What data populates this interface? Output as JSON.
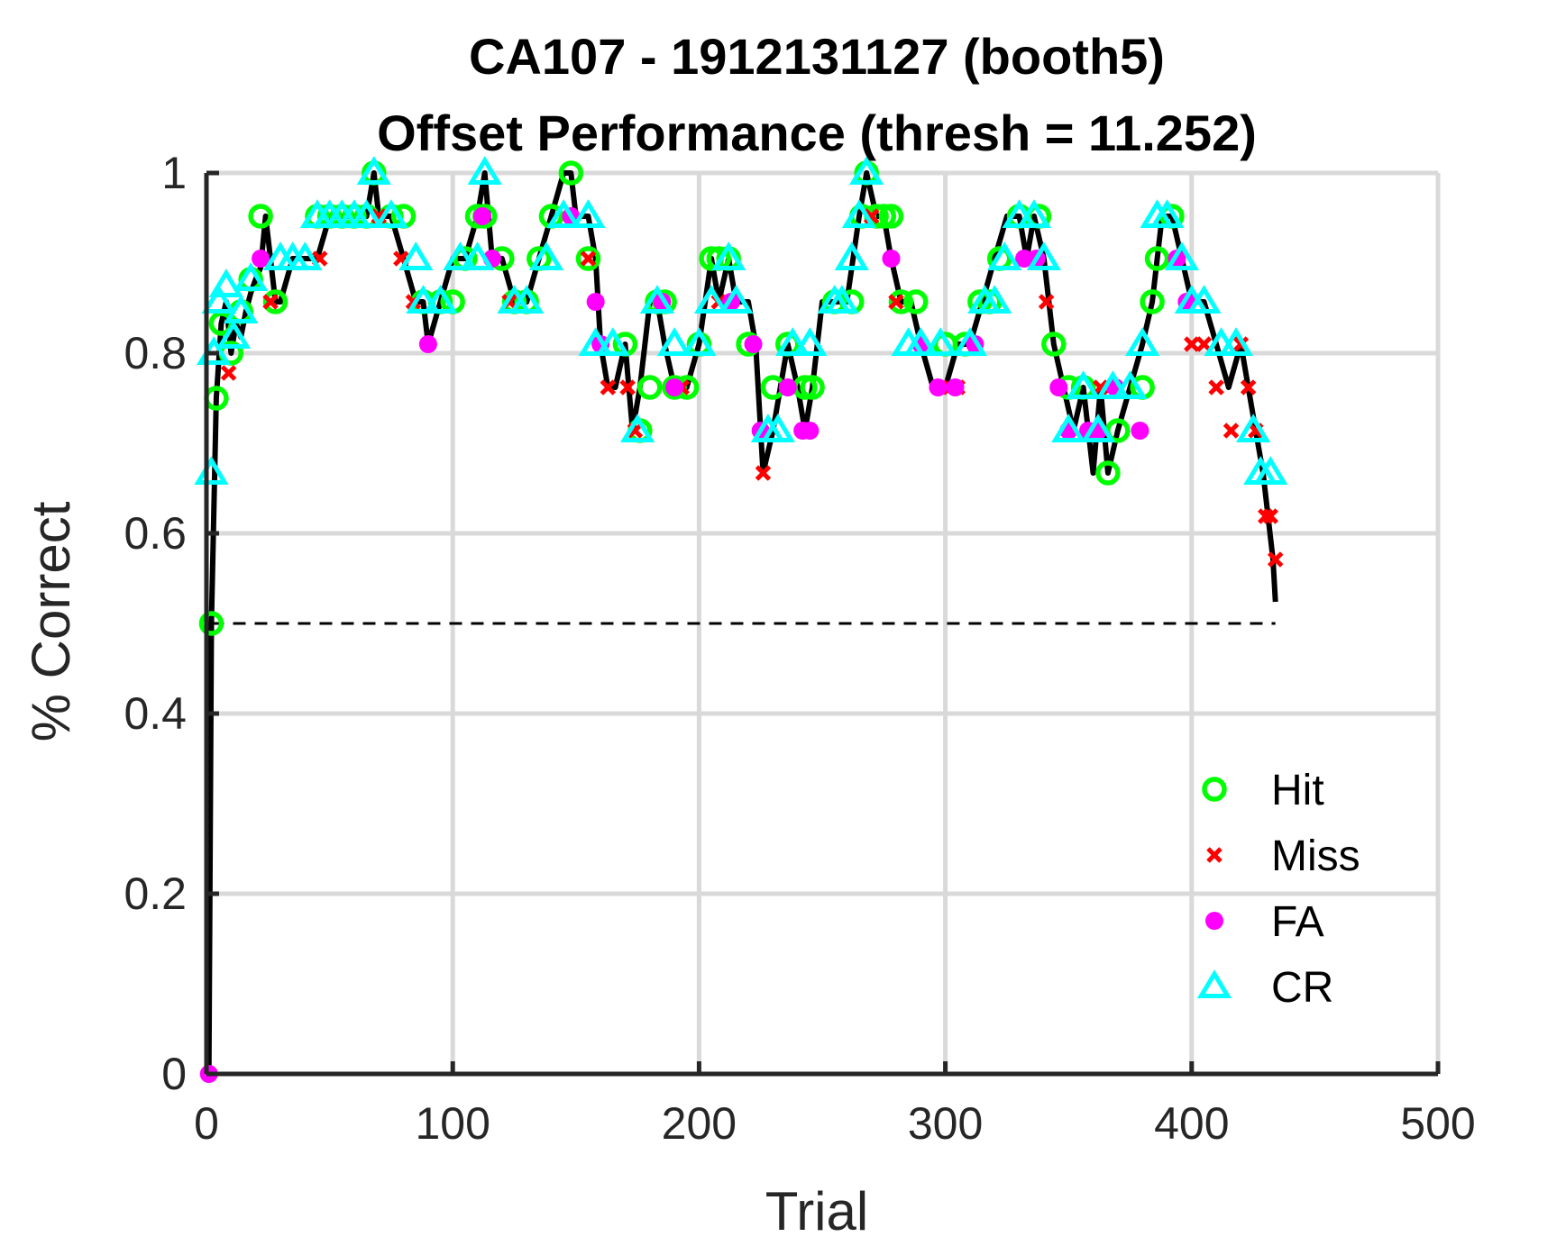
{
  "chart_data": {
    "type": "line",
    "title_lines": [
      "CA107 - 1912131127 (booth5)",
      "Offset Performance (thresh = 11.252)"
    ],
    "xlabel": "Trial",
    "ylabel": "% Correct",
    "xlim": [
      0,
      500
    ],
    "ylim": [
      0,
      1
    ],
    "xticks": [
      "0",
      "100",
      "200",
      "300",
      "400",
      "500"
    ],
    "yticks": [
      "0",
      "0.2",
      "0.4",
      "0.6",
      "0.8",
      "1"
    ],
    "grid": true,
    "legend_position": "bottom-right",
    "reference_line": {
      "y": 0.5,
      "x_range": [
        2,
        434
      ],
      "style": "dashed"
    },
    "line_x": [
      1,
      2,
      4,
      6,
      8,
      10,
      12,
      14,
      16,
      18,
      20,
      22,
      24,
      26,
      28,
      30,
      35,
      40,
      45,
      50,
      55,
      60,
      65,
      68,
      70,
      75,
      80,
      85,
      88,
      90,
      95,
      100,
      105,
      110,
      113,
      116,
      120,
      125,
      130,
      135,
      140,
      145,
      148,
      150,
      155,
      158,
      160,
      163,
      166,
      170,
      173,
      176,
      180,
      183,
      186,
      190,
      195,
      200,
      205,
      208,
      212,
      215,
      220,
      223,
      226,
      230,
      233,
      236,
      240,
      243,
      246,
      250,
      255,
      260,
      265,
      268,
      272,
      275,
      278,
      282,
      286,
      290,
      295,
      300,
      305,
      310,
      315,
      320,
      325,
      330,
      333,
      336,
      340,
      344,
      348,
      352,
      356,
      360,
      363,
      366,
      370,
      375,
      380,
      384,
      388,
      392,
      396,
      400,
      405,
      410,
      415,
      420,
      423,
      426,
      429,
      431,
      433,
      434
    ],
    "line_y": [
      0.0,
      0.5,
      0.75,
      0.833,
      0.857,
      0.8,
      0.833,
      0.818,
      0.846,
      0.867,
      0.882,
      0.895,
      0.952,
      0.905,
      0.857,
      0.857,
      0.905,
      0.905,
      0.905,
      0.952,
      0.952,
      0.952,
      0.952,
      1.0,
      0.952,
      0.952,
      0.905,
      0.857,
      0.857,
      0.81,
      0.857,
      0.905,
      0.905,
      0.952,
      1.0,
      0.905,
      0.905,
      0.857,
      0.857,
      0.905,
      0.952,
      1.0,
      1.0,
      0.952,
      0.952,
      0.905,
      0.81,
      0.762,
      0.762,
      0.81,
      0.714,
      0.762,
      0.857,
      0.857,
      0.81,
      0.762,
      0.762,
      0.81,
      0.905,
      0.857,
      0.905,
      0.857,
      0.857,
      0.81,
      0.667,
      0.714,
      0.762,
      0.81,
      0.762,
      0.714,
      0.762,
      0.857,
      0.857,
      0.857,
      0.952,
      1.0,
      0.952,
      0.952,
      0.905,
      0.857,
      0.857,
      0.81,
      0.762,
      0.762,
      0.81,
      0.81,
      0.857,
      0.905,
      0.952,
      0.952,
      0.905,
      0.952,
      0.905,
      0.81,
      0.762,
      0.714,
      0.762,
      0.667,
      0.762,
      0.667,
      0.714,
      0.762,
      0.81,
      0.857,
      0.952,
      0.952,
      0.905,
      0.857,
      0.857,
      0.81,
      0.762,
      0.81,
      0.762,
      0.714,
      0.667,
      0.619,
      0.571,
      0.524
    ],
    "series": [
      {
        "name": "Hit",
        "marker": "circle-open",
        "color": "#00ff00",
        "x": [
          2,
          4,
          6,
          10,
          14,
          18,
          22,
          28,
          45,
          50,
          55,
          60,
          65,
          68,
          75,
          80,
          88,
          95,
          100,
          105,
          110,
          113,
          120,
          125,
          130,
          135,
          140,
          148,
          155,
          170,
          176,
          180,
          183,
          186,
          190,
          195,
          200,
          205,
          208,
          212,
          220,
          230,
          236,
          243,
          246,
          255,
          262,
          266,
          268,
          272,
          275,
          278,
          282,
          288,
          300,
          308,
          314,
          318,
          322,
          330,
          338,
          344,
          350,
          356,
          366,
          370,
          380,
          384,
          386,
          392
        ],
        "y": [
          0.5,
          0.75,
          0.833,
          0.8,
          0.846,
          0.882,
          0.952,
          0.857,
          0.952,
          0.952,
          0.952,
          0.952,
          0.952,
          1.0,
          0.952,
          0.952,
          0.857,
          0.857,
          0.857,
          0.905,
          0.952,
          0.952,
          0.905,
          0.857,
          0.857,
          0.905,
          0.952,
          1.0,
          0.905,
          0.81,
          0.714,
          0.762,
          0.857,
          0.857,
          0.762,
          0.762,
          0.81,
          0.905,
          0.905,
          0.905,
          0.81,
          0.762,
          0.81,
          0.762,
          0.762,
          0.857,
          0.857,
          0.952,
          1.0,
          0.952,
          0.952,
          0.952,
          0.857,
          0.857,
          0.81,
          0.81,
          0.857,
          0.857,
          0.905,
          0.952,
          0.952,
          0.81,
          0.762,
          0.762,
          0.667,
          0.714,
          0.762,
          0.857,
          0.905,
          0.952
        ]
      },
      {
        "name": "Miss",
        "marker": "x",
        "color": "#ff0000",
        "x": [
          9,
          26,
          46,
          70,
          79,
          84,
          123,
          155,
          163,
          171,
          174,
          193,
          208,
          226,
          270,
          280,
          298,
          305,
          341,
          359,
          363,
          400,
          405,
          410,
          416,
          420,
          423,
          426,
          430,
          432,
          434
        ],
        "y": [
          0.778,
          0.857,
          0.905,
          0.952,
          0.905,
          0.857,
          0.857,
          0.905,
          0.762,
          0.762,
          0.714,
          0.762,
          0.857,
          0.667,
          0.952,
          0.857,
          0.762,
          0.762,
          0.857,
          0.714,
          0.762,
          0.81,
          0.81,
          0.762,
          0.714,
          0.81,
          0.762,
          0.714,
          0.619,
          0.619,
          0.571
        ]
      },
      {
        "name": "FA",
        "marker": "circle-filled",
        "color": "#ff00ff",
        "x": [
          1,
          22,
          90,
          112,
          116,
          148,
          158,
          160,
          185,
          190,
          213,
          222,
          225,
          236,
          242,
          245,
          278,
          290,
          297,
          304,
          312,
          332,
          337,
          346,
          350,
          358,
          362,
          369,
          379,
          394,
          398
        ],
        "y": [
          0.0,
          0.905,
          0.81,
          0.952,
          0.905,
          0.952,
          0.857,
          0.81,
          0.857,
          0.762,
          0.857,
          0.81,
          0.714,
          0.762,
          0.714,
          0.714,
          0.905,
          0.81,
          0.762,
          0.762,
          0.81,
          0.905,
          0.905,
          0.762,
          0.714,
          0.714,
          0.714,
          0.762,
          0.714,
          0.905,
          0.857
        ]
      },
      {
        "name": "CR",
        "marker": "triangle-open",
        "color": "#00ffff",
        "x": [
          2,
          3,
          5,
          8,
          11,
          14,
          18,
          30,
          35,
          40,
          45,
          50,
          55,
          60,
          65,
          68,
          75,
          85,
          88,
          95,
          103,
          110,
          113,
          125,
          130,
          138,
          145,
          155,
          158,
          165,
          175,
          183,
          190,
          200,
          205,
          212,
          215,
          228,
          232,
          238,
          245,
          255,
          258,
          262,
          265,
          268,
          285,
          290,
          298,
          310,
          316,
          320,
          324,
          330,
          336,
          340,
          350,
          356,
          362,
          368,
          375,
          380,
          386,
          390,
          396,
          400,
          405,
          412,
          418,
          425,
          428,
          432
        ],
        "y": [
          0.667,
          0.8,
          0.857,
          0.875,
          0.818,
          0.846,
          0.882,
          0.905,
          0.905,
          0.905,
          0.952,
          0.952,
          0.952,
          0.952,
          0.952,
          1.0,
          0.952,
          0.905,
          0.857,
          0.857,
          0.905,
          0.905,
          1.0,
          0.857,
          0.857,
          0.905,
          0.952,
          0.952,
          0.81,
          0.81,
          0.714,
          0.857,
          0.81,
          0.81,
          0.857,
          0.905,
          0.857,
          0.714,
          0.714,
          0.81,
          0.81,
          0.857,
          0.857,
          0.905,
          0.952,
          1.0,
          0.81,
          0.81,
          0.81,
          0.81,
          0.857,
          0.857,
          0.905,
          0.952,
          0.952,
          0.905,
          0.714,
          0.762,
          0.714,
          0.762,
          0.762,
          0.81,
          0.952,
          0.952,
          0.905,
          0.857,
          0.857,
          0.81,
          0.81,
          0.714,
          0.667,
          0.667
        ]
      }
    ],
    "colors": {
      "line": "#000000",
      "grid": "#d9d9d9",
      "axis": "#262626"
    }
  }
}
